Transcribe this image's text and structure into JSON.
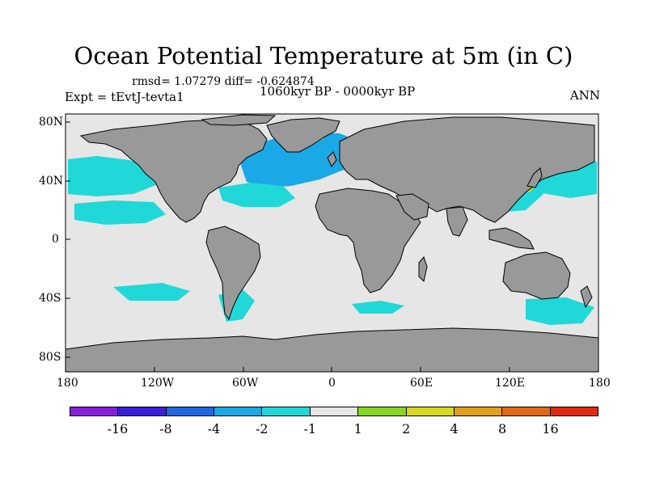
{
  "title": "Ocean Potential Temperature at 5m (in C)",
  "stats": "rmsd= 1.07279 diff= -0.624874",
  "experiment": "Expt = tEvtJ-tevta1",
  "period": "1060kyr BP - 0000kyr BP",
  "season": "ANN",
  "lat_labels": [
    "80N",
    "40N",
    "0",
    "40S",
    "80S"
  ],
  "lon_labels": [
    "180",
    "120W",
    "60W",
    "0",
    "60E",
    "120E",
    "180"
  ],
  "colorbar": {
    "colors": [
      "#8a1ed8",
      "#3a1ed8",
      "#1f68e0",
      "#1aa8e6",
      "#20d8d8",
      "#e6e6e6",
      "#86d81e",
      "#d8d81e",
      "#e0a01a",
      "#e06a14",
      "#e02a10"
    ],
    "labels": [
      "-16",
      "-8",
      "-4",
      "-2",
      "-1",
      "1",
      "2",
      "4",
      "8",
      "16"
    ]
  },
  "colors": {
    "land": "#999999",
    "ocean_neutral": "#e6e6e6",
    "coast": "#000000"
  }
}
